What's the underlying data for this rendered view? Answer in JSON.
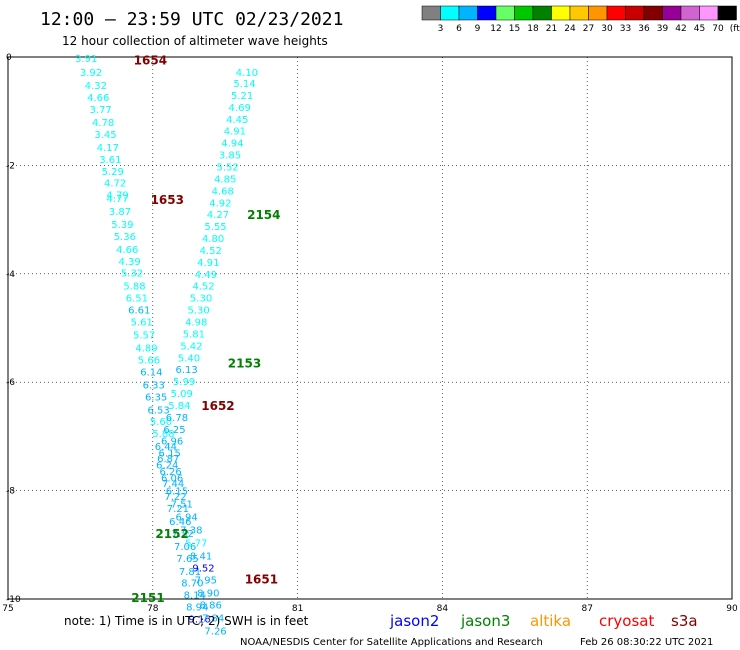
{
  "header": {
    "title": "12:00 – 23:59 UTC 02/23/2021",
    "subtitle": "12 hour collection of altimeter wave heights"
  },
  "colorbar": {
    "colors": [
      "#808080",
      "#00ffff",
      "#00b4ff",
      "#0000ff",
      "#66ff66",
      "#00c800",
      "#008200",
      "#ffff00",
      "#ffc800",
      "#ff9600",
      "#ff0000",
      "#c80000",
      "#820000",
      "#960096",
      "#d264d2",
      "#ff96ff",
      "#000000"
    ],
    "labels": [
      "3",
      "6",
      "9",
      "12",
      "15",
      "18",
      "21",
      "24",
      "27",
      "30",
      "33",
      "36",
      "39",
      "42",
      "45",
      "70",
      "(ft)"
    ]
  },
  "chart_data": {
    "type": "scatter",
    "title": "12:00 – 23:59 UTC 02/23/2021",
    "subtitle": "12 hour collection of altimeter wave heights",
    "xlabel": "",
    "ylabel": "",
    "xlim": [
      75,
      90
    ],
    "ylim": [
      -10,
      0
    ],
    "x_ticks": [
      "75",
      "78",
      "81",
      "84",
      "87",
      "90"
    ],
    "y_ticks": [
      "0",
      "-2",
      "-4",
      "-6",
      "-8",
      "-10"
    ],
    "x_tick_values": [
      75,
      78,
      81,
      84,
      87,
      90
    ],
    "y_tick_values": [
      0,
      -2,
      -4,
      -6,
      -8,
      -10
    ],
    "grid": "dotted",
    "points": [
      {
        "x": 76.62,
        "y": -0.02,
        "v": "3.91",
        "c": "#00ffff"
      },
      {
        "x": 76.72,
        "y": -0.28,
        "v": "3.92",
        "c": "#00ffff"
      },
      {
        "x": 76.82,
        "y": -0.52,
        "v": "4.32",
        "c": "#00ffff"
      },
      {
        "x": 76.87,
        "y": -0.74,
        "v": "4.66",
        "c": "#00ffff"
      },
      {
        "x": 76.92,
        "y": -0.96,
        "v": "3.77",
        "c": "#00ffff"
      },
      {
        "x": 76.97,
        "y": -1.2,
        "v": "4.78",
        "c": "#00ffff"
      },
      {
        "x": 77.02,
        "y": -1.42,
        "v": "3.45",
        "c": "#00ffff"
      },
      {
        "x": 77.07,
        "y": -1.66,
        "v": "4.17",
        "c": "#00ffff"
      },
      {
        "x": 77.12,
        "y": -1.88,
        "v": "3.61",
        "c": "#00ffff"
      },
      {
        "x": 77.17,
        "y": -2.1,
        "v": "5.29",
        "c": "#00ffff"
      },
      {
        "x": 77.22,
        "y": -2.32,
        "v": "4.72",
        "c": "#00ffff"
      },
      {
        "x": 77.27,
        "y": -2.54,
        "v": "4.79",
        "c": "#00ffff"
      },
      {
        "x": 77.27,
        "y": -2.6,
        "v": "4.77",
        "c": "#00ffff"
      },
      {
        "x": 77.32,
        "y": -2.84,
        "v": "3.87",
        "c": "#00ffff"
      },
      {
        "x": 77.37,
        "y": -3.08,
        "v": "5.39",
        "c": "#00ffff"
      },
      {
        "x": 77.42,
        "y": -3.3,
        "v": "5.36",
        "c": "#00ffff"
      },
      {
        "x": 77.47,
        "y": -3.54,
        "v": "4.66",
        "c": "#00ffff"
      },
      {
        "x": 77.52,
        "y": -3.76,
        "v": "4.39",
        "c": "#00ffff"
      },
      {
        "x": 77.57,
        "y": -3.98,
        "v": "5.32",
        "c": "#00ffff"
      },
      {
        "x": 77.62,
        "y": -4.22,
        "v": "5.88",
        "c": "#00ffff"
      },
      {
        "x": 77.67,
        "y": -4.44,
        "v": "6.51",
        "c": "#00ffff"
      },
      {
        "x": 77.72,
        "y": -4.66,
        "v": "6.61",
        "c": "#00b4ff"
      },
      {
        "x": 77.77,
        "y": -4.88,
        "v": "5.61",
        "c": "#00ffff"
      },
      {
        "x": 77.82,
        "y": -5.12,
        "v": "5.57",
        "c": "#00ffff"
      },
      {
        "x": 77.87,
        "y": -5.36,
        "v": "4.89",
        "c": "#00ffff"
      },
      {
        "x": 77.92,
        "y": -5.58,
        "v": "5.66",
        "c": "#00ffff"
      },
      {
        "x": 77.97,
        "y": -5.8,
        "v": "6.14",
        "c": "#00b4ff"
      },
      {
        "x": 78.02,
        "y": -6.04,
        "v": "6.33",
        "c": "#00b4ff"
      },
      {
        "x": 78.07,
        "y": -6.26,
        "v": "6.35",
        "c": "#00b4ff"
      },
      {
        "x": 78.12,
        "y": -6.5,
        "v": "6.53",
        "c": "#00b4ff"
      },
      {
        "x": 78.17,
        "y": -6.72,
        "v": "5.60",
        "c": "#00ffff"
      },
      {
        "x": 78.22,
        "y": -6.94,
        "v": "5.88",
        "c": "#00ffff"
      },
      {
        "x": 78.27,
        "y": -7.18,
        "v": "6.44",
        "c": "#00b4ff"
      },
      {
        "x": 78.32,
        "y": -7.4,
        "v": "6.87",
        "c": "#00b4ff"
      },
      {
        "x": 78.37,
        "y": -7.64,
        "v": "6.26",
        "c": "#00b4ff"
      },
      {
        "x": 78.42,
        "y": -7.86,
        "v": "7.44",
        "c": "#00b4ff"
      },
      {
        "x": 78.47,
        "y": -8.1,
        "v": "7.22",
        "c": "#00b4ff"
      },
      {
        "x": 78.52,
        "y": -8.32,
        "v": "7.21",
        "c": "#00b4ff"
      },
      {
        "x": 78.57,
        "y": -8.56,
        "v": "6.46",
        "c": "#00b4ff"
      },
      {
        "x": 78.62,
        "y": -8.78,
        "v": "7.32",
        "c": "#00b4ff"
      },
      {
        "x": 78.67,
        "y": -9.02,
        "v": "7.06",
        "c": "#00b4ff"
      },
      {
        "x": 78.72,
        "y": -9.24,
        "v": "7.65",
        "c": "#00b4ff"
      },
      {
        "x": 78.77,
        "y": -9.48,
        "v": "7.81",
        "c": "#00b4ff"
      },
      {
        "x": 78.82,
        "y": -9.7,
        "v": "8.70",
        "c": "#00b4ff"
      },
      {
        "x": 78.87,
        "y": -9.92,
        "v": "8.14",
        "c": "#00b4ff"
      },
      {
        "x": 78.92,
        "y": -10.14,
        "v": "8.94",
        "c": "#00b4ff"
      },
      {
        "x": 78.97,
        "y": -10.36,
        "v": "9.16",
        "c": "#0000ff"
      },
      {
        "x": 79.95,
        "y": -0.28,
        "v": "4.10",
        "c": "#00ffff"
      },
      {
        "x": 79.9,
        "y": -0.48,
        "v": "5.14",
        "c": "#00ffff"
      },
      {
        "x": 79.85,
        "y": -0.7,
        "v": "5.21",
        "c": "#00ffff"
      },
      {
        "x": 79.8,
        "y": -0.92,
        "v": "4.69",
        "c": "#00ffff"
      },
      {
        "x": 79.75,
        "y": -1.14,
        "v": "4.45",
        "c": "#00ffff"
      },
      {
        "x": 79.7,
        "y": -1.36,
        "v": "4.91",
        "c": "#00ffff"
      },
      {
        "x": 79.65,
        "y": -1.58,
        "v": "4.94",
        "c": "#00ffff"
      },
      {
        "x": 79.6,
        "y": -1.8,
        "v": "3.85",
        "c": "#00ffff"
      },
      {
        "x": 79.55,
        "y": -2.02,
        "v": "5.52",
        "c": "#00ffff"
      },
      {
        "x": 79.5,
        "y": -2.24,
        "v": "4.85",
        "c": "#00ffff"
      },
      {
        "x": 79.45,
        "y": -2.46,
        "v": "4.68",
        "c": "#00ffff"
      },
      {
        "x": 79.4,
        "y": -2.68,
        "v": "4.92",
        "c": "#00ffff"
      },
      {
        "x": 79.35,
        "y": -2.9,
        "v": "4.27",
        "c": "#00ffff"
      },
      {
        "x": 79.3,
        "y": -3.12,
        "v": "5.55",
        "c": "#00ffff"
      },
      {
        "x": 79.25,
        "y": -3.34,
        "v": "4.80",
        "c": "#00ffff"
      },
      {
        "x": 79.2,
        "y": -3.56,
        "v": "4.52",
        "c": "#00ffff"
      },
      {
        "x": 79.15,
        "y": -3.78,
        "v": "4.91",
        "c": "#00ffff"
      },
      {
        "x": 79.1,
        "y": -4.0,
        "v": "4.49",
        "c": "#00ffff"
      },
      {
        "x": 79.05,
        "y": -4.22,
        "v": "4.52",
        "c": "#00ffff"
      },
      {
        "x": 79.0,
        "y": -4.44,
        "v": "5.30",
        "c": "#00ffff"
      },
      {
        "x": 78.95,
        "y": -4.66,
        "v": "5.30",
        "c": "#00ffff"
      },
      {
        "x": 78.9,
        "y": -4.88,
        "v": "4.98",
        "c": "#00ffff"
      },
      {
        "x": 78.85,
        "y": -5.1,
        "v": "5.81",
        "c": "#00ffff"
      },
      {
        "x": 78.8,
        "y": -5.32,
        "v": "5.42",
        "c": "#00ffff"
      },
      {
        "x": 78.75,
        "y": -5.54,
        "v": "5.40",
        "c": "#00ffff"
      },
      {
        "x": 78.7,
        "y": -5.76,
        "v": "6.13",
        "c": "#00b4ff"
      },
      {
        "x": 78.65,
        "y": -5.98,
        "v": "5.99",
        "c": "#00ffff"
      },
      {
        "x": 78.6,
        "y": -6.2,
        "v": "5.09",
        "c": "#00ffff"
      },
      {
        "x": 78.55,
        "y": -6.42,
        "v": "5.84",
        "c": "#00ffff"
      },
      {
        "x": 78.5,
        "y": -6.64,
        "v": "6.78",
        "c": "#00b4ff"
      },
      {
        "x": 78.45,
        "y": -6.86,
        "v": "6.25",
        "c": "#00b4ff"
      },
      {
        "x": 78.4,
        "y": -7.08,
        "v": "6.96",
        "c": "#00b4ff"
      },
      {
        "x": 78.35,
        "y": -7.3,
        "v": "6.15",
        "c": "#00b4ff"
      },
      {
        "x": 78.3,
        "y": -7.52,
        "v": "6.24",
        "c": "#00b4ff"
      },
      {
        "x": 78.4,
        "y": -7.76,
        "v": "6.06",
        "c": "#00b4ff"
      },
      {
        "x": 78.5,
        "y": -8.0,
        "v": "6.15",
        "c": "#00b4ff"
      },
      {
        "x": 78.6,
        "y": -8.24,
        "v": "7.51",
        "c": "#00b4ff"
      },
      {
        "x": 78.7,
        "y": -8.48,
        "v": "6.94",
        "c": "#00b4ff"
      },
      {
        "x": 78.8,
        "y": -8.72,
        "v": "7.38",
        "c": "#00b4ff"
      },
      {
        "x": 78.9,
        "y": -8.96,
        "v": "5.77",
        "c": "#00ffff"
      },
      {
        "x": 79.0,
        "y": -9.2,
        "v": "8.41",
        "c": "#00b4ff"
      },
      {
        "x": 79.05,
        "y": -9.42,
        "v": "9.52",
        "c": "#0000ff"
      },
      {
        "x": 79.1,
        "y": -9.64,
        "v": "7.95",
        "c": "#00b4ff"
      },
      {
        "x": 79.15,
        "y": -9.88,
        "v": "8.90",
        "c": "#00b4ff"
      },
      {
        "x": 79.2,
        "y": -10.1,
        "v": "8.86",
        "c": "#00b4ff"
      },
      {
        "x": 79.25,
        "y": -10.34,
        "v": "7.84",
        "c": "#00b4ff"
      },
      {
        "x": 79.3,
        "y": -10.58,
        "v": "7.26",
        "c": "#00b4ff"
      }
    ],
    "pass_labels": [
      {
        "x": 77.95,
        "y": -0.05,
        "v": "1654",
        "c": "#820000"
      },
      {
        "x": 78.3,
        "y": -2.62,
        "v": "1653",
        "c": "#820000"
      },
      {
        "x": 80.3,
        "y": -2.9,
        "v": "2154",
        "c": "#008200"
      },
      {
        "x": 79.9,
        "y": -5.64,
        "v": "2153",
        "c": "#008200"
      },
      {
        "x": 79.35,
        "y": -6.42,
        "v": "1652",
        "c": "#820000"
      },
      {
        "x": 78.4,
        "y": -8.78,
        "v": "2152",
        "c": "#008200"
      },
      {
        "x": 80.25,
        "y": -9.62,
        "v": "1651",
        "c": "#820000"
      },
      {
        "x": 77.9,
        "y": -9.96,
        "v": "2151",
        "c": "#008200"
      }
    ]
  },
  "footer": {
    "note": "note: 1) Time is in UTC; 2) SWH is in feet",
    "satellites": [
      {
        "name": "jason2",
        "color": "#0000ff"
      },
      {
        "name": "jason3",
        "color": "#008200"
      },
      {
        "name": "altika",
        "color": "#ff9600"
      },
      {
        "name": "cryosat",
        "color": "#ff0000"
      },
      {
        "name": "s3a",
        "color": "#820000"
      }
    ],
    "credit": "NOAA/NESDIS Center for Satellite Applications and Research",
    "timestamp": "Feb 26 08:30:22 UTC 2021"
  }
}
